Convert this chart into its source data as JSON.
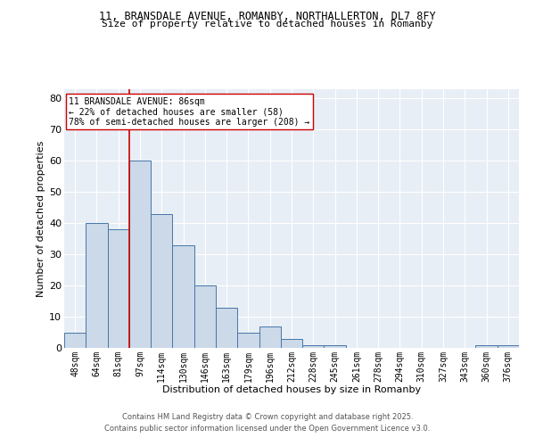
{
  "title_line1": "11, BRANSDALE AVENUE, ROMANBY, NORTHALLERTON, DL7 8FY",
  "title_line2": "Size of property relative to detached houses in Romanby",
  "xlabel": "Distribution of detached houses by size in Romanby",
  "ylabel": "Number of detached properties",
  "bar_labels": [
    "48sqm",
    "64sqm",
    "81sqm",
    "97sqm",
    "114sqm",
    "130sqm",
    "146sqm",
    "163sqm",
    "179sqm",
    "196sqm",
    "212sqm",
    "228sqm",
    "245sqm",
    "261sqm",
    "278sqm",
    "294sqm",
    "310sqm",
    "327sqm",
    "343sqm",
    "360sqm",
    "376sqm"
  ],
  "bar_values": [
    5,
    40,
    38,
    60,
    43,
    33,
    20,
    13,
    5,
    7,
    3,
    1,
    1,
    0,
    0,
    0,
    0,
    0,
    0,
    1,
    1
  ],
  "bar_color": "#ccd9e8",
  "bar_edge_color": "#4477aa",
  "vline_color": "#cc0000",
  "annotation_text": "11 BRANSDALE AVENUE: 86sqm\n← 22% of detached houses are smaller (58)\n78% of semi-detached houses are larger (208) →",
  "annotation_box_color": "#ffffff",
  "annotation_box_edge": "#cc0000",
  "ylim": [
    0,
    83
  ],
  "yticks": [
    0,
    10,
    20,
    30,
    40,
    50,
    60,
    70,
    80
  ],
  "bg_color": "#e8eef5",
  "grid_color": "#ffffff",
  "footer_line1": "Contains HM Land Registry data © Crown copyright and database right 2025.",
  "footer_line2": "Contains public sector information licensed under the Open Government Licence v3.0."
}
